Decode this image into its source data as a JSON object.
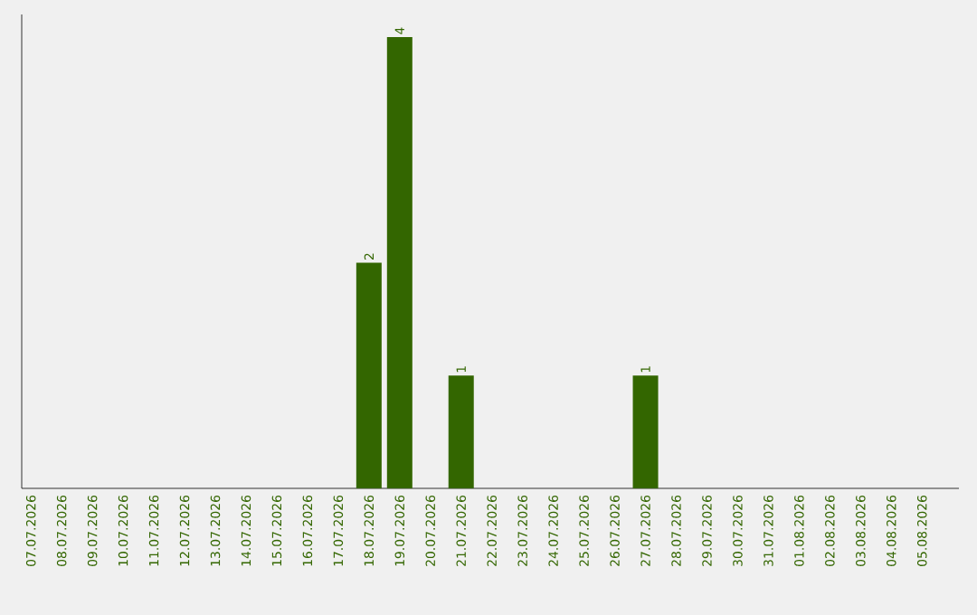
{
  "chart_data": {
    "type": "bar",
    "categories": [
      "07.07.2026",
      "08.07.2026",
      "09.07.2026",
      "10.07.2026",
      "11.07.2026",
      "12.07.2026",
      "13.07.2026",
      "14.07.2026",
      "15.07.2026",
      "16.07.2026",
      "17.07.2026",
      "18.07.2026",
      "19.07.2026",
      "20.07.2026",
      "21.07.2026",
      "22.07.2026",
      "23.07.2026",
      "24.07.2026",
      "25.07.2026",
      "26.07.2026",
      "27.07.2026",
      "28.07.2026",
      "29.07.2026",
      "30.07.2026",
      "31.07.2026",
      "01.08.2026",
      "02.08.2026",
      "03.08.2026",
      "04.08.2026",
      "05.08.2026"
    ],
    "values": [
      0,
      0,
      0,
      0,
      0,
      0,
      0,
      0,
      0,
      0,
      0,
      2,
      4,
      0,
      1,
      0,
      0,
      0,
      0,
      0,
      1,
      0,
      0,
      0,
      0,
      0,
      0,
      0,
      0,
      0
    ],
    "value_labels": [
      null,
      null,
      null,
      null,
      null,
      null,
      null,
      null,
      null,
      null,
      null,
      "2",
      "4",
      null,
      "1",
      null,
      null,
      null,
      null,
      null,
      "1",
      null,
      null,
      null,
      null,
      null,
      null,
      null,
      null,
      null
    ],
    "color": "#336600"
  }
}
